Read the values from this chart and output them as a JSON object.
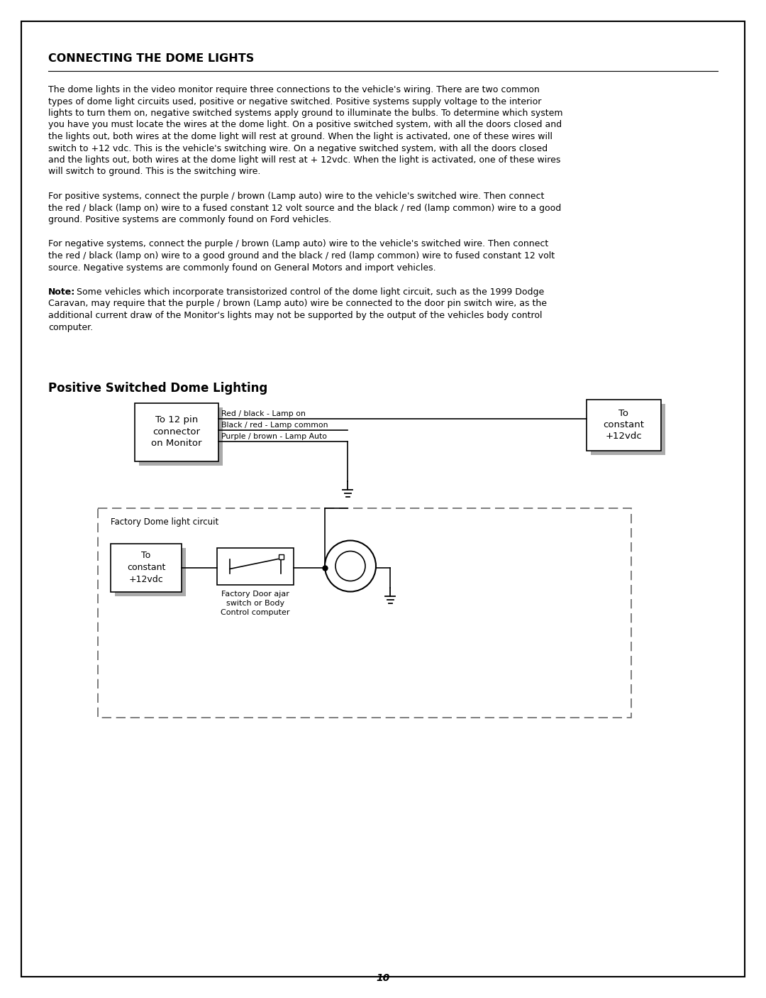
{
  "page_bg": "#ffffff",
  "border_color": "#000000",
  "title_main": "CONNECTING THE DOME LIGHTS",
  "para1_line1": "The dome lights in the video monitor require three connections to the vehicle's wiring. There are two common",
  "para1_line2": "types of dome light circuits used, positive or negative switched. Positive systems supply voltage to the interior",
  "para1_line3": "lights to turn them on, negative switched systems apply ground to illuminate the bulbs. To determine which system",
  "para1_line4": "you have you must locate the wires at the dome light. On a positive switched system, with all the doors closed and",
  "para1_line5": "the lights out, both wires at the dome light will rest at ground. When the light is activated, one of these wires will",
  "para1_line6": "switch to +12 vdc. This is the vehicle's switching wire. On a negative switched system, with all the doors closed",
  "para1_line7": "and the lights out, both wires at the dome light will rest at + 12vdc. When the light is activated, one of these wires",
  "para1_line8": "will switch to ground. This is the switching wire.",
  "para2_line1": "For positive systems, connect the purple / brown (Lamp auto) wire to the vehicle's switched wire. Then connect",
  "para2_line2": "the red / black (lamp on) wire to a fused constant 12 volt source and the black / red (lamp common) wire to a good",
  "para2_line3": "ground. Positive systems are commonly found on Ford vehicles.",
  "para3_line1": "For negative systems, connect the purple / brown (Lamp auto) wire to the vehicle's switched wire. Then connect",
  "para3_line2": "the red / black (lamp on) wire to a good ground and the black / red (lamp common) wire to fused constant 12 volt",
  "para3_line3": "source. Negative systems are commonly found on General Motors and import vehicles.",
  "note_bold": "Note:",
  "note_line1": " Some vehicles which incorporate transistorized control of the dome light circuit, such as the 1999 Dodge",
  "note_line2": "Caravan, may require that the purple / brown (Lamp auto) wire be connected to the door pin switch wire, as the",
  "note_line3": "additional current draw of the Monitor's lights may not be supported by the output of the vehicles body control",
  "note_line4": "computer.",
  "diagram_title": "Positive Switched Dome Lighting",
  "page_number": "10",
  "line_color": "#000000",
  "box_fill": "#ffffff",
  "box_shadow": "#aaaaaa",
  "dashed_box_color": "#555555",
  "wire_label1": "Red / black - Lamp on",
  "wire_label2": "Black / red - Lamp common",
  "wire_label3": "Purple / brown - Lamp Auto",
  "factory_label": "Factory Dome light circuit",
  "switch_label": "Factory Door ajar\nswitch or Body\nControl computer"
}
